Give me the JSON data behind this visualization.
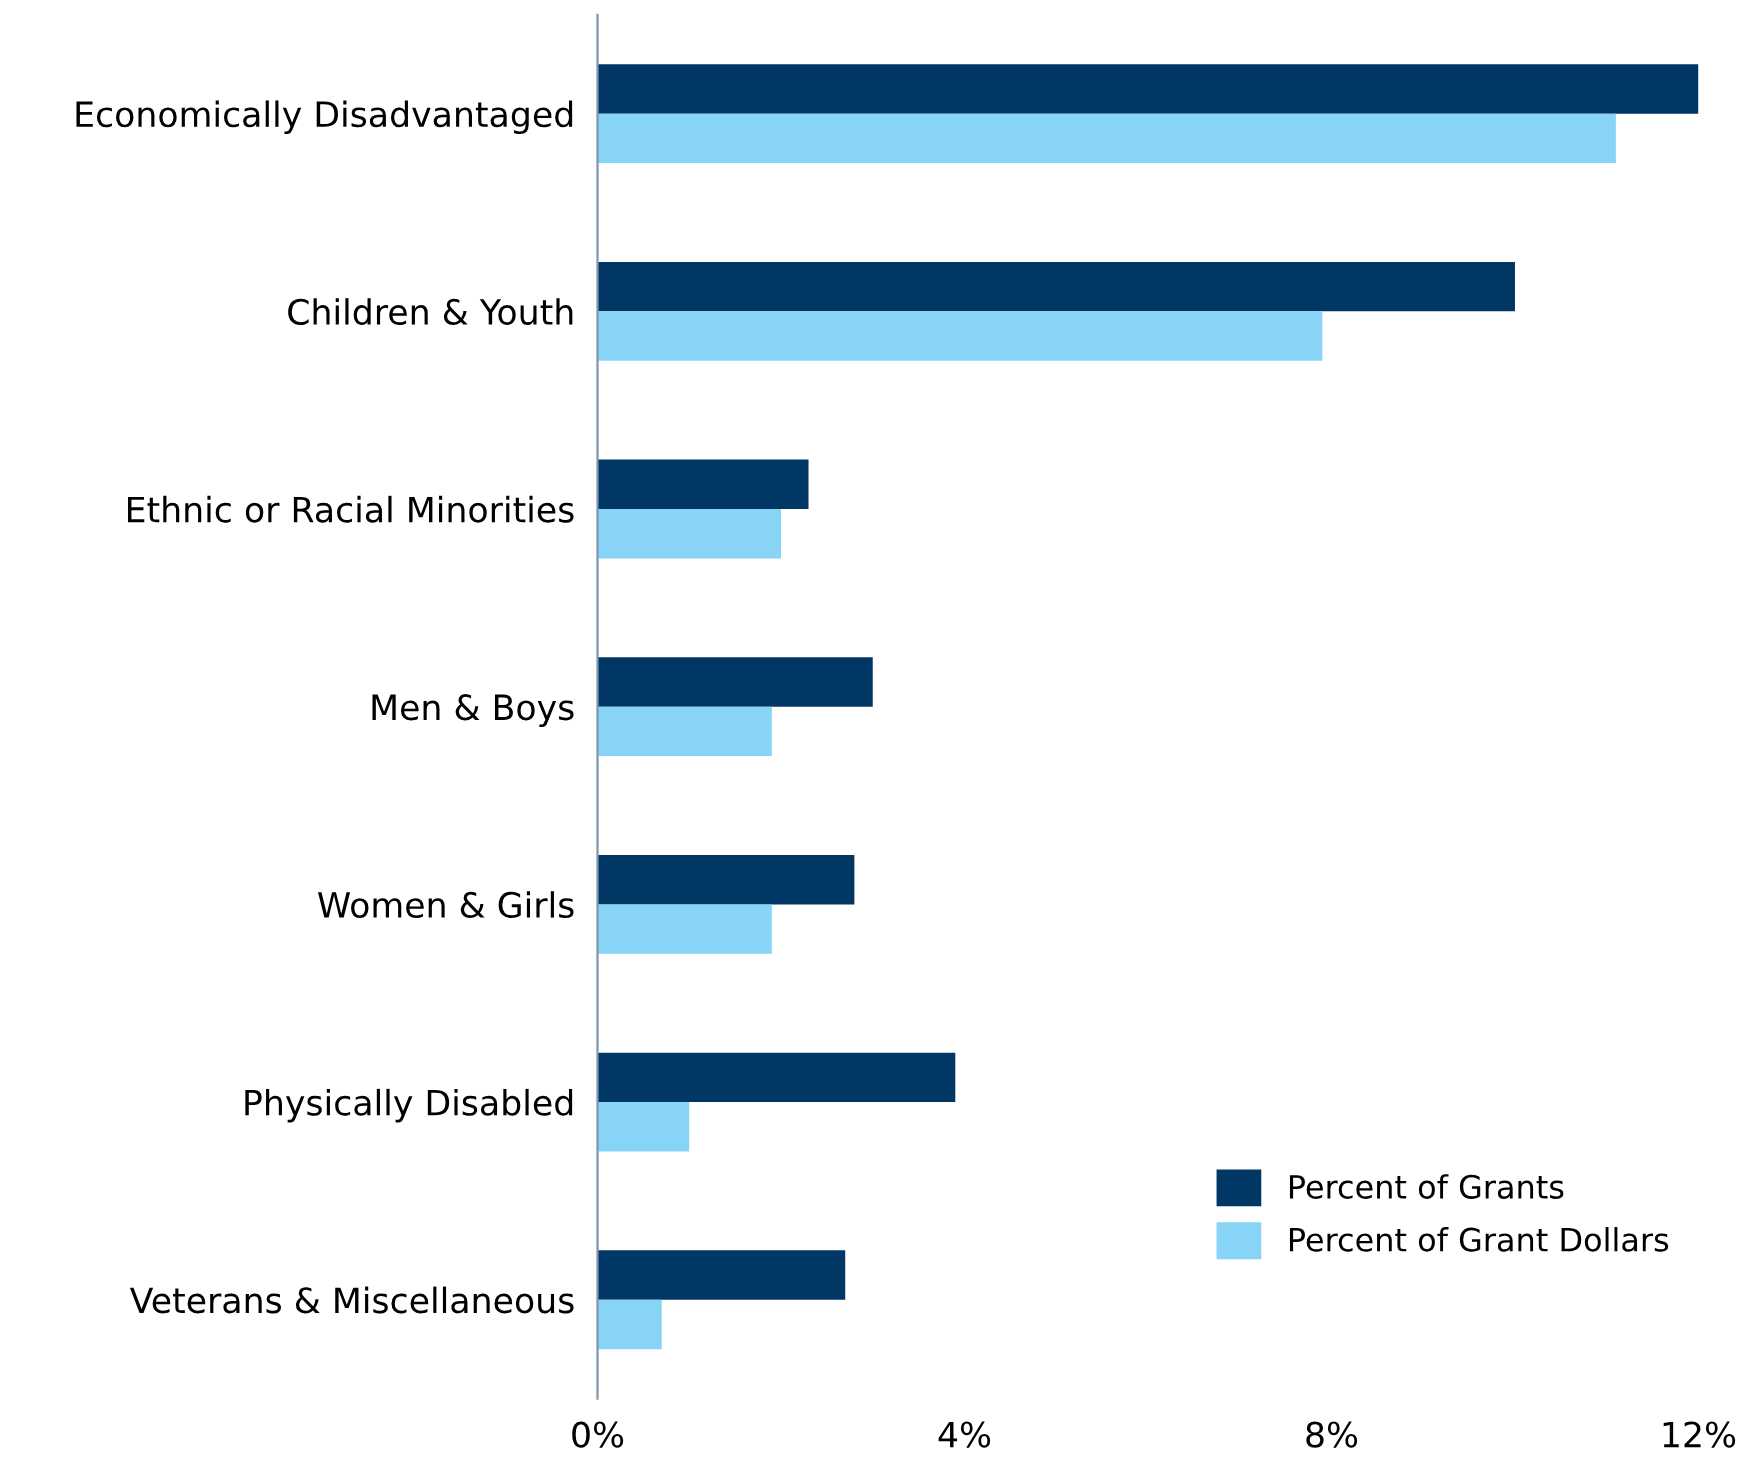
{
  "chart_data": {
    "type": "bar",
    "orientation": "horizontal",
    "categories": [
      "Economically Disadvantaged",
      "Children & Youth",
      "Ethnic or Racial Minorities",
      "Men & Boys",
      "Women & Girls",
      "Physically Disabled",
      "Veterans & Miscellaneous"
    ],
    "series": [
      {
        "name": "Percent of Grants",
        "color": "#003764",
        "values": [
          12.0,
          10.0,
          2.3,
          3.0,
          2.8,
          3.9,
          2.7
        ]
      },
      {
        "name": "Percent of Grant Dollars",
        "color": "#87d4f7",
        "values": [
          11.1,
          7.9,
          2.0,
          1.9,
          1.9,
          1.0,
          0.7
        ]
      }
    ],
    "xlim": [
      0,
      12
    ],
    "xticks": [
      {
        "value": 0,
        "label": "0%"
      },
      {
        "value": 4,
        "label": "4%"
      },
      {
        "value": 8,
        "label": "8%"
      },
      {
        "value": 12,
        "label": "12%"
      }
    ],
    "grid": false,
    "legend": "bottom right"
  }
}
